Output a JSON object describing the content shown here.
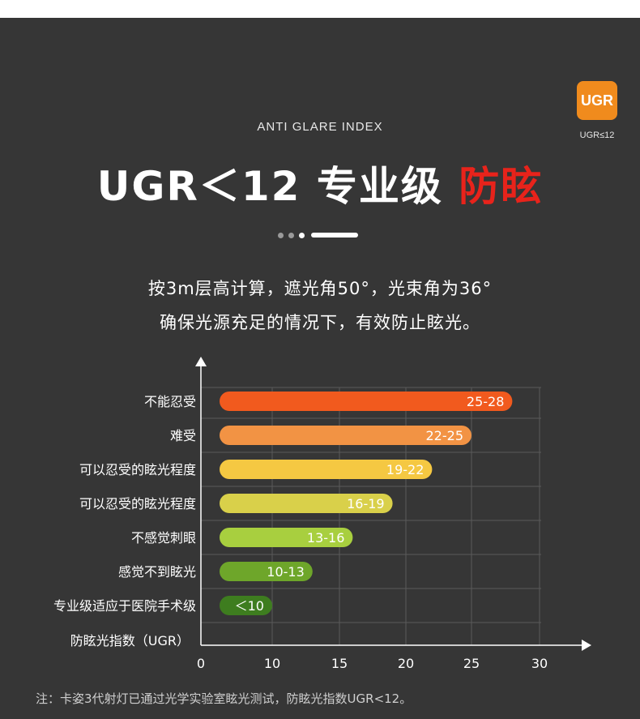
{
  "badge": {
    "text": "UGR",
    "label": "UGR≤12",
    "color": "#f08b1d"
  },
  "eyebrow": "ANTI GLARE INDEX",
  "headline": {
    "main": "UGR＜12 专业级",
    "accent": "防眩",
    "accent_color": "#e8231b"
  },
  "description": {
    "line1": "按3m层高计算，遮光角50°，光束角为36°",
    "line2": "确保光源充足的情况下，有效防止眩光。"
  },
  "footnote": "注：卡姿3代射灯已通过光学实验室眩光测试，防眩光指数UGR<12。",
  "chart_data": {
    "type": "bar",
    "orientation": "horizontal",
    "title": "",
    "ylabel": "防眩光指数（UGR）",
    "xlabel": "",
    "xlim": [
      0,
      30
    ],
    "xticks": [
      0,
      10,
      15,
      20,
      25,
      30
    ],
    "grid": true,
    "categories": [
      "不能忍受",
      "难受",
      "可以忍受的眩光程度",
      "可以忍受的眩光程度",
      "不感觉刺眼",
      "感觉不到眩光",
      "专业级适应于医院手术级"
    ],
    "values": [
      28,
      25,
      22,
      19,
      16,
      13,
      10
    ],
    "value_labels": [
      "25-28",
      "22-25",
      "19-22",
      "16-19",
      "13-16",
      "10-13",
      "＜10"
    ],
    "colors": [
      "#f15a1e",
      "#f29344",
      "#f5c842",
      "#d9d04a",
      "#a8cf3f",
      "#6ea62a",
      "#3e7d1f"
    ]
  }
}
